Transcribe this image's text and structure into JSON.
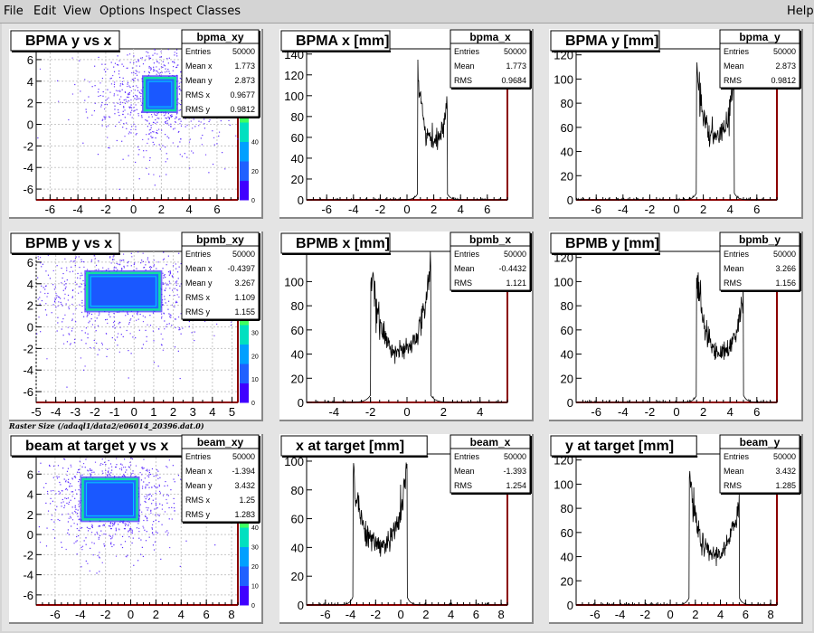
{
  "menu": {
    "items": [
      "File",
      "Edit",
      "View",
      "Options",
      "Inspect",
      "Classes"
    ],
    "help": "Help"
  },
  "raster_caption": "Raster Size (/adaql1/data2/e06014_20396.dat.0)",
  "palette_labels_a": [
    "0",
    "20",
    "40",
    "60"
  ],
  "palette_labels_b": [
    "0",
    "10",
    "20",
    "30",
    "40"
  ],
  "palette_labels_c": [
    "0",
    "10",
    "20",
    "30",
    "40",
    "50"
  ],
  "chart_data": [
    {
      "type": "heatmap",
      "title": "BPMA y vs x",
      "stats": {
        "name": "bpma_xy",
        "rows": [
          [
            "Entries",
            "50000"
          ],
          [
            "Mean x",
            "1.773"
          ],
          [
            "Mean y",
            "2.873"
          ],
          [
            "RMS x",
            "0.9677"
          ],
          [
            "RMS y",
            "0.9812"
          ]
        ]
      },
      "xlim": [
        -7,
        7.5
      ],
      "ylim": [
        -7,
        7
      ],
      "xticks": [
        "-6",
        "-4",
        "-2",
        "0",
        "2",
        "4",
        "6"
      ],
      "yticks": [
        "-6",
        "-4",
        "-2",
        "0",
        "2",
        "4",
        "6"
      ],
      "box": {
        "x": [
          0.8,
          3.0
        ],
        "y": [
          1.3,
          4.3
        ]
      }
    },
    {
      "type": "line",
      "title": "BPMA x [mm]",
      "stats": {
        "name": "bpma_x",
        "rows": [
          [
            "Entries",
            "50000"
          ],
          [
            "Mean",
            "1.773"
          ],
          [
            "RMS",
            "0.9684"
          ]
        ]
      },
      "xlim": [
        -7.5,
        7.5
      ],
      "ylim": [
        0,
        145
      ],
      "xticks": [
        "-6",
        "-4",
        "-2",
        "0",
        "2",
        "4",
        "6"
      ],
      "yticks": [
        "0",
        "20",
        "40",
        "60",
        "80",
        "100",
        "120",
        "140"
      ],
      "plateau": [
        0.8,
        3.0
      ],
      "peaks": [
        130,
        100
      ],
      "valley": 55
    },
    {
      "type": "line",
      "title": "BPMA y [mm]",
      "stats": {
        "name": "bpma_y",
        "rows": [
          [
            "Entries",
            "50000"
          ],
          [
            "Mean",
            "2.873"
          ],
          [
            "RMS",
            "0.9812"
          ]
        ]
      },
      "xlim": [
        -7.5,
        7.5
      ],
      "ylim": [
        0,
        125
      ],
      "xticks": [
        "-6",
        "-4",
        "-2",
        "0",
        "2",
        "4",
        "6"
      ],
      "yticks": [
        "0",
        "20",
        "40",
        "60",
        "80",
        "100",
        "120"
      ],
      "plateau": [
        1.5,
        4.3
      ],
      "peaks": [
        115,
        105
      ],
      "valley": 50
    },
    {
      "type": "heatmap",
      "title": "BPMB y vs x",
      "stats": {
        "name": "bpmb_xy",
        "rows": [
          [
            "Entries",
            "50000"
          ],
          [
            "Mean x",
            "-0.4397"
          ],
          [
            "Mean y",
            "3.267"
          ],
          [
            "RMS x",
            "1.109"
          ],
          [
            "RMS y",
            "1.155"
          ]
        ]
      },
      "xlim": [
        -5,
        5.3
      ],
      "ylim": [
        -7,
        7
      ],
      "xticks": [
        "-5",
        "-4",
        "-3",
        "-2",
        "-1",
        "0",
        "1",
        "2",
        "3",
        "4",
        "5"
      ],
      "yticks": [
        "-6",
        "-4",
        "-2",
        "0",
        "2",
        "4",
        "6"
      ],
      "box": {
        "x": [
          -2.4,
          1.3
        ],
        "y": [
          1.6,
          5.0
        ]
      }
    },
    {
      "type": "line",
      "title": "BPMB x [mm]",
      "stats": {
        "name": "bpmb_x",
        "rows": [
          [
            "Entries",
            "50000"
          ],
          [
            "Mean",
            "-0.4432"
          ],
          [
            "RMS",
            "1.121"
          ]
        ]
      },
      "xlim": [
        -5.5,
        5.5
      ],
      "ylim": [
        0,
        125
      ],
      "xticks": [
        "-4",
        "-2",
        "0",
        "2",
        "4"
      ],
      "yticks": [
        "0",
        "20",
        "40",
        "60",
        "80",
        "100"
      ],
      "plateau": [
        -2.0,
        1.3
      ],
      "peaks": [
        110,
        115
      ],
      "valley": 40
    },
    {
      "type": "line",
      "title": "BPMB y [mm]",
      "stats": {
        "name": "bpmb_y",
        "rows": [
          [
            "Entries",
            "50000"
          ],
          [
            "Mean",
            "3.266"
          ],
          [
            "RMS",
            "1.156"
          ]
        ]
      },
      "xlim": [
        -7.5,
        7.5
      ],
      "ylim": [
        0,
        125
      ],
      "xticks": [
        "-6",
        "-4",
        "-2",
        "0",
        "2",
        "4",
        "6"
      ],
      "yticks": [
        "0",
        "20",
        "40",
        "60",
        "80",
        "100",
        "120"
      ],
      "plateau": [
        1.5,
        5.0
      ],
      "peaks": [
        110,
        90
      ],
      "valley": 40
    },
    {
      "type": "heatmap",
      "title": "beam at target y vs x",
      "stats": {
        "name": "beam_xy",
        "rows": [
          [
            "Entries",
            "50000"
          ],
          [
            "Mean x",
            "-1.394"
          ],
          [
            "Mean y",
            "3.432"
          ],
          [
            "RMS x",
            "1.25"
          ],
          [
            "RMS y",
            "1.283"
          ]
        ]
      },
      "xlim": [
        -7.5,
        8.5
      ],
      "ylim": [
        -7,
        8
      ],
      "xticks": [
        "-6",
        "-4",
        "-2",
        "0",
        "2",
        "4",
        "6",
        "8"
      ],
      "yticks": [
        "-6",
        "-4",
        "-2",
        "0",
        "2",
        "4",
        "6"
      ],
      "box": {
        "x": [
          -3.8,
          0.5
        ],
        "y": [
          1.5,
          5.5
        ]
      }
    },
    {
      "type": "line",
      "title": "x at target [mm]",
      "stats": {
        "name": "beam_x",
        "rows": [
          [
            "Entries",
            "50000"
          ],
          [
            "Mean",
            "-1.393"
          ],
          [
            "RMS",
            "1.254"
          ]
        ]
      },
      "xlim": [
        -7.5,
        8.5
      ],
      "ylim": [
        0,
        105
      ],
      "xticks": [
        "-6",
        "-4",
        "-2",
        "0",
        "2",
        "4",
        "6",
        "8"
      ],
      "yticks": [
        "0",
        "20",
        "40",
        "60",
        "80",
        "100"
      ],
      "plateau": [
        -3.8,
        0.5
      ],
      "peaks": [
        95,
        95
      ],
      "valley": 40
    },
    {
      "type": "line",
      "title": "y at target [mm]",
      "stats": {
        "name": "beam_y",
        "rows": [
          [
            "Entries",
            "50000"
          ],
          [
            "Mean",
            "3.432"
          ],
          [
            "RMS",
            "1.285"
          ]
        ]
      },
      "xlim": [
        -7.5,
        8.5
      ],
      "ylim": [
        0,
        125
      ],
      "xticks": [
        "-6",
        "-4",
        "-2",
        "0",
        "2",
        "4",
        "6",
        "8"
      ],
      "yticks": [
        "0",
        "20",
        "40",
        "60",
        "80",
        "100",
        "120"
      ],
      "plateau": [
        1.5,
        5.5
      ],
      "peaks": [
        110,
        90
      ],
      "valley": 40
    }
  ]
}
